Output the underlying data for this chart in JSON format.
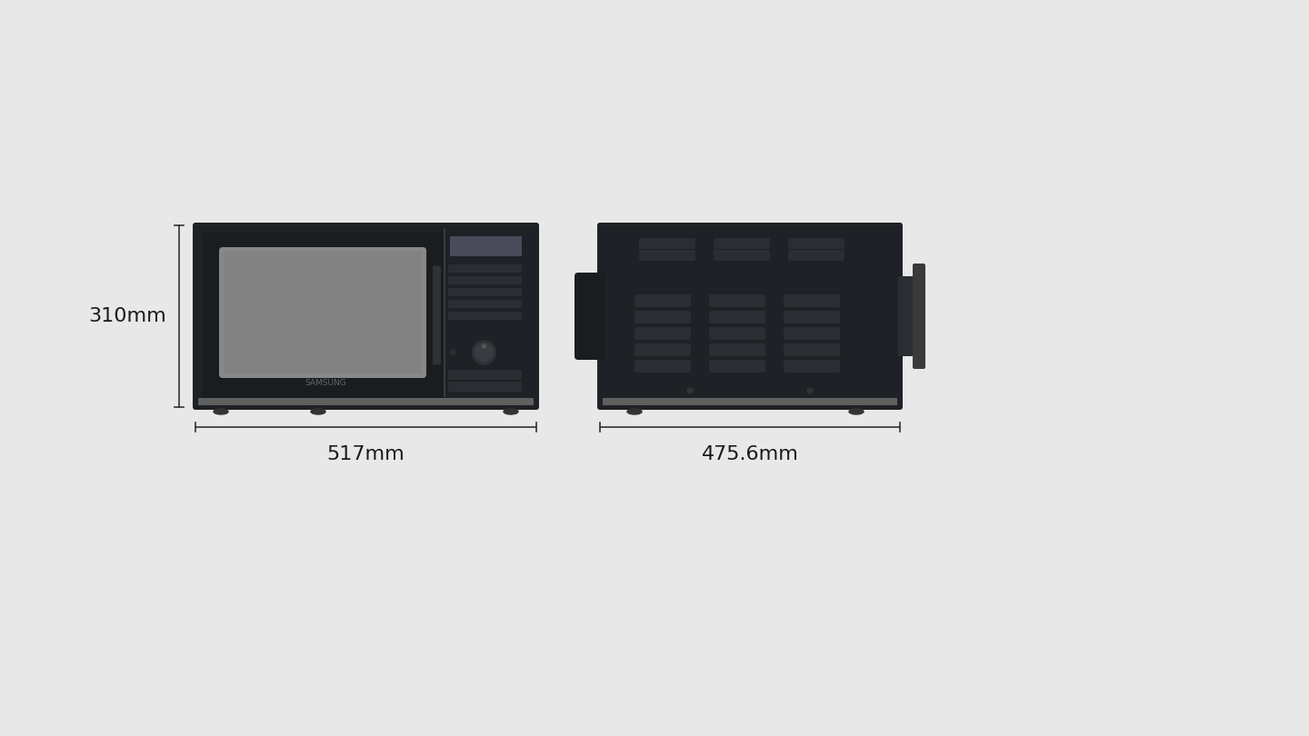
{
  "bg_color": "#e8e8e8",
  "text_color": "#1a1a1a",
  "microwave_color": "#1e2125",
  "microwave_dark": "#252a2e",
  "microwave_darker": "#191d20",
  "screen_color": "#888888",
  "dim_line_color": "#333333",
  "height_label": "310mm",
  "width_label": "517mm",
  "depth_label": "475.6mm",
  "samsung_label": "SAMSUNG",
  "label_fontsize": 16
}
